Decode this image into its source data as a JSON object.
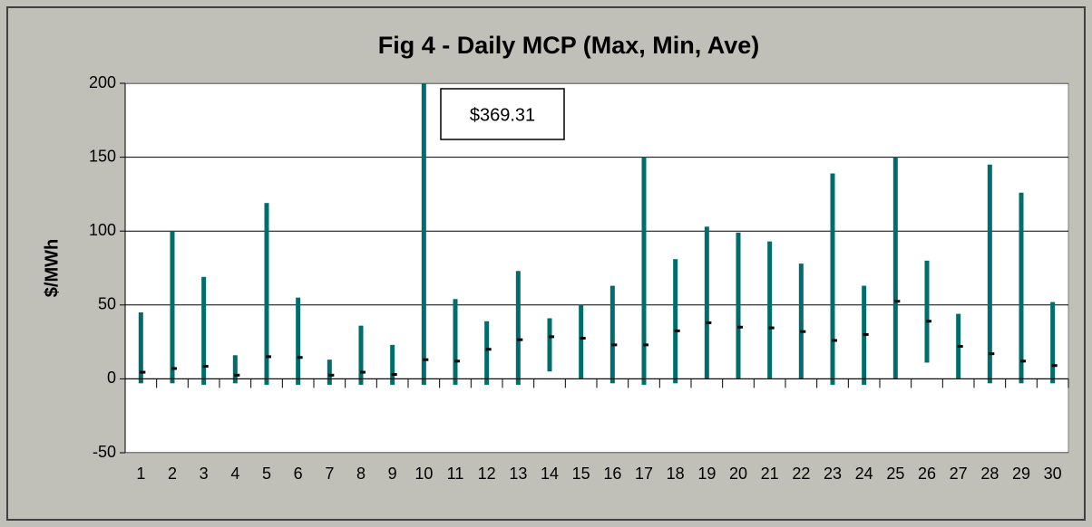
{
  "chart_data": {
    "type": "hilo",
    "title": "Fig 4 - Daily MCP (Max, Min, Ave)",
    "y_label": "$/MWh",
    "categories": [
      "1",
      "2",
      "3",
      "4",
      "5",
      "6",
      "7",
      "8",
      "9",
      "10",
      "11",
      "12",
      "13",
      "14",
      "15",
      "16",
      "17",
      "18",
      "19",
      "20",
      "21",
      "22",
      "23",
      "24",
      "25",
      "26",
      "27",
      "28",
      "29",
      "30"
    ],
    "highs": [
      45,
      100,
      69,
      16,
      119,
      55,
      13,
      36,
      23,
      369.31,
      54,
      39,
      73,
      41,
      50,
      63,
      150,
      81,
      103,
      99,
      93,
      78,
      139,
      63,
      150,
      80,
      44,
      145,
      126,
      52
    ],
    "lows": [
      -3,
      -3,
      -4,
      -3,
      -4,
      -4,
      -4,
      -4,
      -4,
      -4,
      -4,
      -4,
      -4,
      5,
      0,
      -3,
      -4,
      -3,
      0,
      0,
      0,
      0,
      -4,
      -4,
      0,
      11,
      0,
      -3,
      -3,
      -3
    ],
    "averages": [
      4.5,
      7,
      8.5,
      2.5,
      15,
      14.5,
      2.5,
      4.5,
      3,
      13,
      12,
      20,
      26.5,
      28.5,
      27.5,
      23,
      23,
      32.5,
      38,
      35,
      34.5,
      32,
      26,
      30,
      52.5,
      39,
      22,
      17,
      12,
      9
    ],
    "color": "#006d6d",
    "average_color": "#000000",
    "annotation": "$369.31",
    "ylim": [
      -50,
      200
    ],
    "yticks": [
      -50,
      0,
      50,
      100,
      150,
      200
    ],
    "grid": true
  }
}
